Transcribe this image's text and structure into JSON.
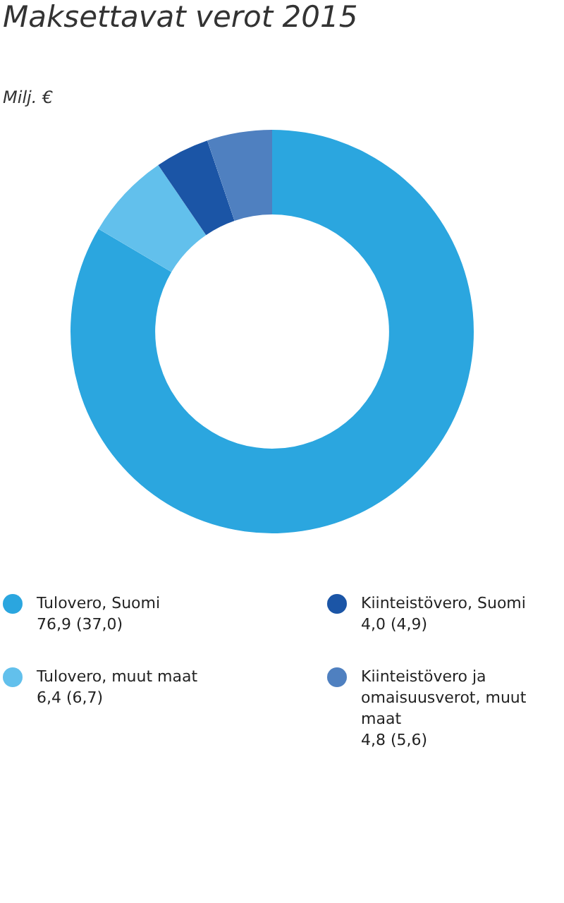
{
  "chart_data": {
    "type": "donut",
    "title": "Maksettavat verot 2015",
    "subtitle": "Milj. €",
    "categories": [
      "Tulovero, Suomi",
      "Tulovero, muut maat",
      "Kiinteistövero, Suomi",
      "Kiinteistövero ja omaisuusverot, muut maat"
    ],
    "values": [
      76.9,
      6.4,
      4.0,
      4.8
    ],
    "value_labels": [
      "76,9 (37,0)",
      "6,4 (6,7)",
      "4,0 (4,9)",
      "4,8 (5,6)"
    ],
    "colors": [
      "#2ba6df",
      "#62c0ec",
      "#1b55a6",
      "#4f80c0"
    ],
    "legend": "bottom"
  }
}
